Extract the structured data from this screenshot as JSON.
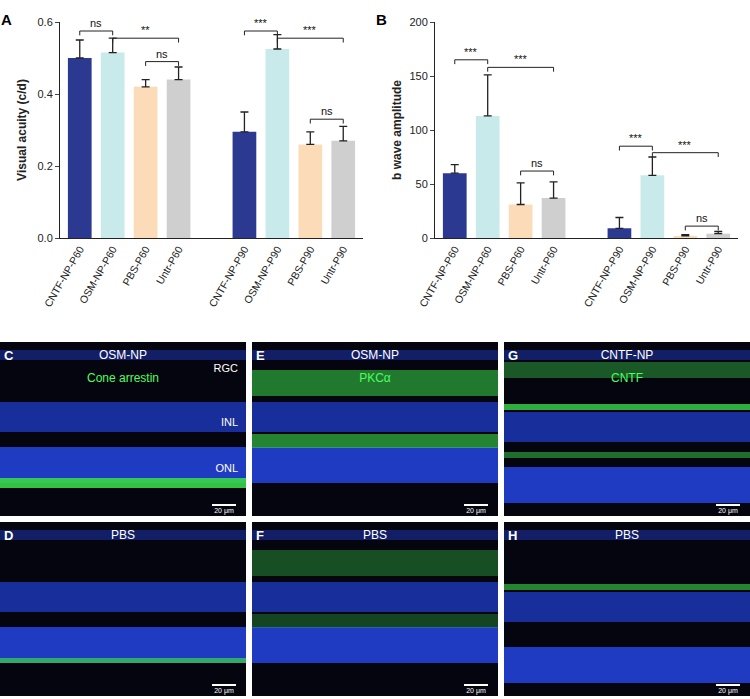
{
  "chart_data": [
    {
      "type": "bar",
      "panel": "A",
      "y_label": "Visual acuity (c/d)",
      "categories": [
        "CNTF-NP-P60",
        "OSM-NP-P60",
        "PBS-P60",
        "Untr-P60",
        null,
        "CNTF-NP-P90",
        "OSM-NP-P90",
        "PBS-P90",
        "Untr-P90"
      ],
      "values": [
        0.5,
        0.515,
        0.42,
        0.44,
        null,
        0.295,
        0.525,
        0.26,
        0.27
      ],
      "error": [
        0.05,
        0.04,
        0.02,
        0.035,
        null,
        0.055,
        0.04,
        0.035,
        0.04
      ],
      "colors": [
        "#2b3990",
        "#c8eaea",
        "#fcdcb8",
        "#cfcfcf",
        null,
        "#2b3990",
        "#c8eaea",
        "#fcdcb8",
        "#cfcfcf"
      ],
      "ylim": [
        0,
        0.6
      ],
      "yticks": [
        {
          "value": 0,
          "label": "0.0"
        },
        0.2,
        0.4,
        0.6
      ],
      "grid": false,
      "significance": [
        {
          "from": 0,
          "to": 1,
          "y": 0.575,
          "label": "ns"
        },
        {
          "from": 1,
          "to": 3,
          "y": 0.555,
          "label": "**"
        },
        {
          "from": 2,
          "to": 3,
          "y": 0.49,
          "label": "ns"
        },
        {
          "from": 5,
          "to": 6,
          "y": 0.575,
          "label": "***"
        },
        {
          "from": 6,
          "to": 8,
          "y": 0.555,
          "label": "***"
        },
        {
          "from": 7,
          "to": 8,
          "y": 0.33,
          "label": "ns"
        }
      ]
    },
    {
      "type": "bar",
      "panel": "B",
      "y_label": "b wave amplitude",
      "categories": [
        "CNTF-NP-P60",
        "OSM-NP-P60",
        "PBS-P60",
        "Untr-P60",
        null,
        "CNTF-NP-P90",
        "OSM-NP-P90",
        "PBS-P90",
        "Untr-P90"
      ],
      "values": [
        60,
        113,
        31,
        37,
        null,
        9,
        58,
        2,
        4
      ],
      "error": [
        8,
        38,
        20,
        15,
        null,
        10,
        17,
        1,
        2
      ],
      "colors": [
        "#2b3990",
        "#c8eaea",
        "#fcdcb8",
        "#cfcfcf",
        null,
        "#2b3990",
        "#c8eaea",
        "#fcdcb8",
        "#cfcfcf"
      ],
      "ylim": [
        0,
        200
      ],
      "yticks": [
        0,
        50,
        100,
        150,
        200
      ],
      "grid": false,
      "significance": [
        {
          "from": 0,
          "to": 1,
          "y": 165,
          "label": "***"
        },
        {
          "from": 1,
          "to": 3,
          "y": 158,
          "label": "***"
        },
        {
          "from": 2,
          "to": 3,
          "y": 62,
          "label": "ns"
        },
        {
          "from": 5,
          "to": 6,
          "y": 85,
          "label": "***"
        },
        {
          "from": 6,
          "to": 8,
          "y": 79,
          "label": "***"
        },
        {
          "from": 7,
          "to": 8,
          "y": 11,
          "label": "ns"
        }
      ]
    }
  ],
  "image_panels": [
    {
      "label": "C",
      "title": "OSM-NP",
      "stain": "Cone arrestin",
      "layers": [
        "RGC",
        "INL",
        "ONL"
      ],
      "scale_bar": "20 μm"
    },
    {
      "label": "D",
      "title": "PBS",
      "scale_bar": "20 μm"
    },
    {
      "label": "E",
      "title": "OSM-NP",
      "stain": "PKCα",
      "scale_bar": "20 μm"
    },
    {
      "label": "F",
      "title": "PBS",
      "scale_bar": "20 μm"
    },
    {
      "label": "G",
      "title": "CNTF-NP",
      "stain": "CNTF",
      "scale_bar": "20 μm"
    },
    {
      "label": "H",
      "title": "PBS",
      "scale_bar": "20 μm"
    }
  ]
}
